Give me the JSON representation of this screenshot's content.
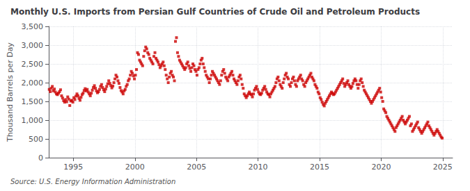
{
  "chart_data": {
    "type": "scatter",
    "title": "Monthly U.S. Imports from Persian Gulf Countries of Crude Oil and Petroleum Products",
    "ylabel": "Thousand Barrels per Day",
    "source": "Source: U.S. Energy Information Administration",
    "color": "#cc0000",
    "marker": "square",
    "grid": true,
    "xlim": [
      1993.0,
      2025.8
    ],
    "xticks": [
      1995,
      2000,
      2005,
      2010,
      2015,
      2020,
      2025
    ],
    "ylim": [
      0,
      3500
    ],
    "yticks": [
      0,
      500,
      {
        "value": 1000,
        "label": "1,000"
      },
      {
        "value": 1500,
        "label": "1,500"
      },
      {
        "value": 2000,
        "label": "2,000"
      },
      {
        "value": 2500,
        "label": "2,500"
      },
      {
        "value": 3000,
        "label": "3,000"
      },
      {
        "value": 3500,
        "label": "3,500"
      }
    ],
    "x": [
      1993.0417,
      1993.125,
      1993.2083,
      1993.2917,
      1993.375,
      1993.4583,
      1993.5417,
      1993.625,
      1993.7083,
      1993.7917,
      1993.875,
      1993.9583,
      1994.0417,
      1994.125,
      1994.2083,
      1994.2917,
      1994.375,
      1994.4583,
      1994.5417,
      1994.625,
      1994.7083,
      1994.7917,
      1994.875,
      1994.9583,
      1995.0417,
      1995.125,
      1995.2083,
      1995.2917,
      1995.375,
      1995.4583,
      1995.5417,
      1995.625,
      1995.7083,
      1995.7917,
      1995.875,
      1995.9583,
      1996.0417,
      1996.125,
      1996.2083,
      1996.2917,
      1996.375,
      1996.4583,
      1996.5417,
      1996.625,
      1996.7083,
      1996.7917,
      1996.875,
      1996.9583,
      1997.0417,
      1997.125,
      1997.2083,
      1997.2917,
      1997.375,
      1997.4583,
      1997.5417,
      1997.625,
      1997.7083,
      1997.7917,
      1997.875,
      1997.9583,
      1998.0417,
      1998.125,
      1998.2083,
      1998.2917,
      1998.375,
      1998.4583,
      1998.5417,
      1998.625,
      1998.7083,
      1998.7917,
      1998.875,
      1998.9583,
      1999.0417,
      1999.125,
      1999.2083,
      1999.2917,
      1999.375,
      1999.4583,
      1999.5417,
      1999.625,
      1999.7083,
      1999.7917,
      1999.875,
      1999.9583,
      2000.0417,
      2000.125,
      2000.2083,
      2000.2917,
      2000.375,
      2000.4583,
      2000.5417,
      2000.625,
      2000.7083,
      2000.7917,
      2000.875,
      2000.9583,
      2001.0417,
      2001.125,
      2001.2083,
      2001.2917,
      2001.375,
      2001.4583,
      2001.5417,
      2001.625,
      2001.7083,
      2001.7917,
      2001.875,
      2001.9583,
      2002.0417,
      2002.125,
      2002.2083,
      2002.2917,
      2002.375,
      2002.4583,
      2002.5417,
      2002.625,
      2002.7083,
      2002.7917,
      2002.875,
      2002.9583,
      2003.0417,
      2003.125,
      2003.2083,
      2003.2917,
      2003.375,
      2003.4583,
      2003.5417,
      2003.625,
      2003.7083,
      2003.7917,
      2003.875,
      2003.9583,
      2004.0417,
      2004.125,
      2004.2083,
      2004.2917,
      2004.375,
      2004.4583,
      2004.5417,
      2004.625,
      2004.7083,
      2004.7917,
      2004.875,
      2004.9583,
      2005.0417,
      2005.125,
      2005.2083,
      2005.2917,
      2005.375,
      2005.4583,
      2005.5417,
      2005.625,
      2005.7083,
      2005.7917,
      2005.875,
      2005.9583,
      2006.0417,
      2006.125,
      2006.2083,
      2006.2917,
      2006.375,
      2006.4583,
      2006.5417,
      2006.625,
      2006.7083,
      2006.7917,
      2006.875,
      2006.9583,
      2007.0417,
      2007.125,
      2007.2083,
      2007.2917,
      2007.375,
      2007.4583,
      2007.5417,
      2007.625,
      2007.7083,
      2007.7917,
      2007.875,
      2007.9583,
      2008.0417,
      2008.125,
      2008.2083,
      2008.2917,
      2008.375,
      2008.4583,
      2008.5417,
      2008.625,
      2008.7083,
      2008.7917,
      2008.875,
      2008.9583,
      2009.0417,
      2009.125,
      2009.2083,
      2009.2917,
      2009.375,
      2009.4583,
      2009.5417,
      2009.625,
      2009.7083,
      2009.7917,
      2009.875,
      2009.9583,
      2010.0417,
      2010.125,
      2010.2083,
      2010.2917,
      2010.375,
      2010.4583,
      2010.5417,
      2010.625,
      2010.7083,
      2010.7917,
      2010.875,
      2010.9583,
      2011.0417,
      2011.125,
      2011.2083,
      2011.2917,
      2011.375,
      2011.4583,
      2011.5417,
      2011.625,
      2011.7083,
      2011.7917,
      2011.875,
      2011.9583,
      2012.0417,
      2012.125,
      2012.2083,
      2012.2917,
      2012.375,
      2012.4583,
      2012.5417,
      2012.625,
      2012.7083,
      2012.7917,
      2012.875,
      2012.9583,
      2013.0417,
      2013.125,
      2013.2083,
      2013.2917,
      2013.375,
      2013.4583,
      2013.5417,
      2013.625,
      2013.7083,
      2013.7917,
      2013.875,
      2013.9583,
      2014.0417,
      2014.125,
      2014.2083,
      2014.2917,
      2014.375,
      2014.4583,
      2014.5417,
      2014.625,
      2014.7083,
      2014.7917,
      2014.875,
      2014.9583,
      2015.0417,
      2015.125,
      2015.2083,
      2015.2917,
      2015.375,
      2015.4583,
      2015.5417,
      2015.625,
      2015.7083,
      2015.7917,
      2015.875,
      2015.9583,
      2016.0417,
      2016.125,
      2016.2083,
      2016.2917,
      2016.375,
      2016.4583,
      2016.5417,
      2016.625,
      2016.7083,
      2016.7917,
      2016.875,
      2016.9583,
      2017.0417,
      2017.125,
      2017.2083,
      2017.2917,
      2017.375,
      2017.4583,
      2017.5417,
      2017.625,
      2017.7083,
      2017.7917,
      2017.875,
      2017.9583,
      2018.0417,
      2018.125,
      2018.2083,
      2018.2917,
      2018.375,
      2018.4583,
      2018.5417,
      2018.625,
      2018.7083,
      2018.7917,
      2018.875,
      2018.9583,
      2019.0417,
      2019.125,
      2019.2083,
      2019.2917,
      2019.375,
      2019.4583,
      2019.5417,
      2019.625,
      2019.7083,
      2019.7917,
      2019.875,
      2019.9583,
      2020.0417,
      2020.125,
      2020.2083,
      2020.2917,
      2020.375,
      2020.4583,
      2020.5417,
      2020.625,
      2020.7083,
      2020.7917,
      2020.875,
      2020.9583,
      2021.0417,
      2021.125,
      2021.2083,
      2021.2917,
      2021.375,
      2021.4583,
      2021.5417,
      2021.625,
      2021.7083,
      2021.7917,
      2021.875,
      2021.9583,
      2022.0417,
      2022.125,
      2022.2083,
      2022.2917,
      2022.375,
      2022.4583,
      2022.5417,
      2022.625,
      2022.7083,
      2022.7917,
      2022.875,
      2022.9583,
      2023.0417,
      2023.125,
      2023.2083,
      2023.2917,
      2023.375,
      2023.4583,
      2023.5417,
      2023.625,
      2023.7083,
      2023.7917,
      2023.875,
      2023.9583,
      2024.0417,
      2024.125,
      2024.2083,
      2024.2917,
      2024.375,
      2024.4583,
      2024.5417,
      2024.625,
      2024.7083,
      2024.7917,
      2024.875,
      2024.9583
    ],
    "values": [
      1820,
      1760,
      1850,
      1900,
      1780,
      1830,
      1750,
      1700,
      1680,
      1720,
      1760,
      1810,
      1650,
      1590,
      1520,
      1480,
      1550,
      1490,
      1620,
      1560,
      1390,
      1510,
      1530,
      1480,
      1600,
      1550,
      1640,
      1700,
      1650,
      1580,
      1530,
      1610,
      1680,
      1720,
      1790,
      1840,
      1780,
      1820,
      1750,
      1700,
      1650,
      1720,
      1800,
      1870,
      1920,
      1850,
      1780,
      1730,
      1760,
      1820,
      1900,
      1950,
      1870,
      1810,
      1760,
      1830,
      1900,
      1970,
      2050,
      1980,
      1920,
      1860,
      1910,
      2000,
      2100,
      2200,
      2150,
      2050,
      1980,
      1870,
      1790,
      1750,
      1700,
      1780,
      1820,
      1900,
      1950,
      2050,
      2100,
      2200,
      2300,
      2250,
      2180,
      2100,
      2200,
      2350,
      2800,
      2750,
      2600,
      2550,
      2500,
      2450,
      2700,
      2850,
      2950,
      2900,
      2800,
      2750,
      2650,
      2600,
      2550,
      2500,
      2700,
      2800,
      2650,
      2600,
      2550,
      2480,
      2400,
      2450,
      2500,
      2550,
      2450,
      2350,
      2200,
      2100,
      2000,
      2150,
      2250,
      2300,
      2200,
      2150,
      2050,
      3100,
      3200,
      2800,
      2700,
      2600,
      2550,
      2500,
      2450,
      2400,
      2350,
      2400,
      2500,
      2550,
      2450,
      2380,
      2300,
      2400,
      2500,
      2450,
      2350,
      2300,
      2200,
      2350,
      2400,
      2500,
      2600,
      2650,
      2500,
      2400,
      2300,
      2200,
      2150,
      2100,
      2000,
      2100,
      2200,
      2300,
      2250,
      2200,
      2150,
      2100,
      2050,
      2000,
      1950,
      2050,
      2200,
      2300,
      2350,
      2250,
      2150,
      2100,
      2050,
      2150,
      2200,
      2250,
      2300,
      2200,
      2100,
      2050,
      2000,
      1950,
      2050,
      2150,
      2200,
      2100,
      1950,
      1850,
      1700,
      1650,
      1600,
      1650,
      1700,
      1750,
      1700,
      1680,
      1620,
      1700,
      1800,
      1850,
      1900,
      1820,
      1750,
      1700,
      1680,
      1720,
      1800,
      1850,
      1900,
      1820,
      1750,
      1700,
      1680,
      1620,
      1700,
      1750,
      1800,
      1850,
      1900,
      2000,
      2100,
      2150,
      2050,
      1950,
      1900,
      1850,
      2000,
      2100,
      2200,
      2250,
      2150,
      2100,
      1950,
      1900,
      2000,
      2100,
      2150,
      2050,
      1950,
      1900,
      2050,
      2100,
      2150,
      2200,
      2100,
      2050,
      1950,
      1900,
      2000,
      2050,
      2100,
      2150,
      2200,
      2250,
      2150,
      2100,
      2050,
      1950,
      1900,
      1850,
      1750,
      1700,
      1600,
      1550,
      1480,
      1420,
      1380,
      1450,
      1500,
      1550,
      1600,
      1650,
      1700,
      1750,
      1720,
      1680,
      1700,
      1750,
      1800,
      1850,
      1900,
      1950,
      2000,
      2050,
      2100,
      1980,
      1900,
      1950,
      2000,
      2050,
      1950,
      1900,
      1850,
      1900,
      1980,
      2050,
      2100,
      2050,
      1950,
      1850,
      1950,
      2050,
      2100,
      2000,
      1900,
      1800,
      1750,
      1700,
      1650,
      1600,
      1550,
      1500,
      1450,
      1500,
      1550,
      1600,
      1650,
      1700,
      1750,
      1800,
      1850,
      1750,
      1600,
      1500,
      1300,
      1250,
      1200,
      1100,
      1050,
      1000,
      950,
      900,
      850,
      800,
      750,
      700,
      800,
      850,
      900,
      950,
      1000,
      1050,
      1100,
      1000,
      950,
      900,
      950,
      1000,
      1050,
      1100,
      850,
      900,
      700,
      750,
      800,
      850,
      900,
      950,
      800,
      750,
      700,
      650,
      700,
      750,
      800,
      850,
      900,
      950,
      850,
      800,
      750,
      700,
      650,
      600,
      650,
      700,
      750,
      700,
      650,
      600,
      550,
      520
    ]
  }
}
